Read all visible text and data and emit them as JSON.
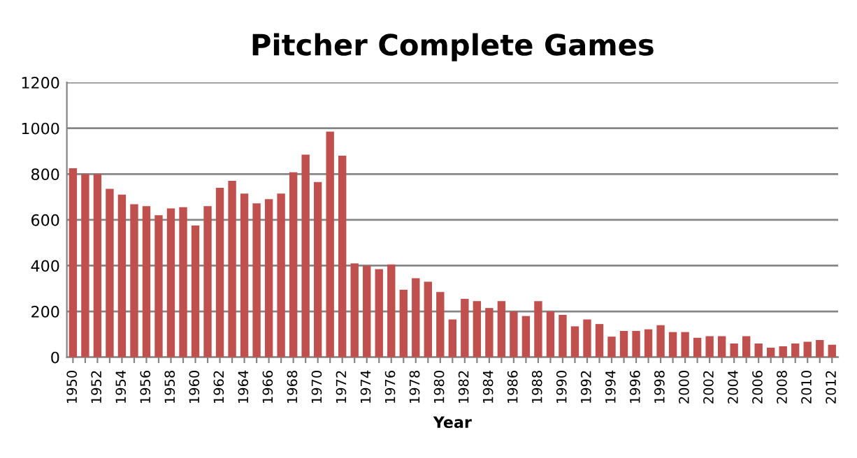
{
  "chart_data": {
    "type": "bar",
    "title": "Pitcher Complete Games",
    "xlabel": "Year",
    "categories": [
      "1950",
      null,
      "1952",
      null,
      "1954",
      null,
      "1956",
      null,
      "1958",
      null,
      "1960",
      null,
      "1962",
      null,
      "1964",
      null,
      "1966",
      null,
      "1968",
      null,
      "1970",
      null,
      "1972",
      null,
      "1974",
      null,
      "1976",
      null,
      "1978",
      null,
      "1980",
      null,
      "1982",
      null,
      "1984",
      null,
      "1986",
      null,
      "1988",
      null,
      "1990",
      null,
      "1992",
      null,
      "1994",
      null,
      "1996",
      null,
      "1998",
      null,
      "2000",
      null,
      "2002",
      null,
      "2004",
      null,
      "2006",
      null,
      "2008",
      null,
      "2010",
      null,
      "2012"
    ],
    "values": [
      825,
      800,
      800,
      735,
      710,
      668,
      660,
      620,
      650,
      655,
      575,
      660,
      740,
      770,
      715,
      672,
      690,
      715,
      808,
      885,
      765,
      985,
      880,
      410,
      400,
      385,
      405,
      295,
      345,
      330,
      285,
      165,
      255,
      245,
      215,
      245,
      200,
      180,
      245,
      200,
      185,
      135,
      165,
      145,
      90,
      115,
      115,
      122,
      140,
      110,
      110,
      85,
      92,
      92,
      60,
      92,
      60,
      42,
      48,
      60,
      68,
      75,
      55
    ],
    "color": "#c0504d",
    "ylim": [
      0,
      1200
    ],
    "yticks": [
      0,
      200,
      400,
      600,
      800,
      1000,
      1200
    ],
    "grid": "y",
    "legend": false
  }
}
